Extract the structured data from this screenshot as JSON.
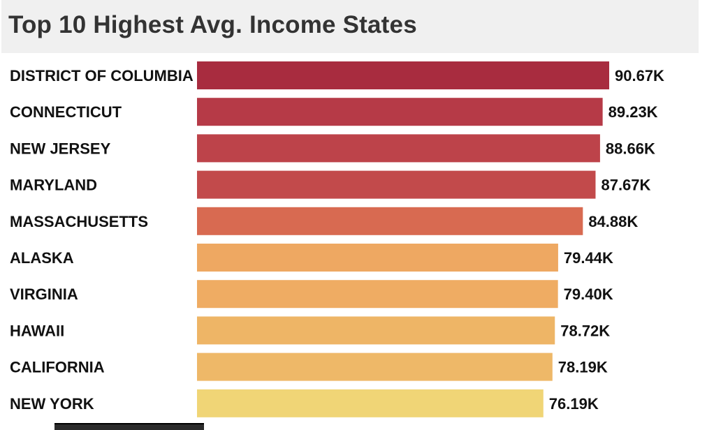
{
  "chart_data": {
    "type": "bar",
    "orientation": "horizontal",
    "title": "Top 10 Highest Avg. Income States",
    "categories": [
      "DISTRICT OF COLUMBIA",
      "CONNECTICUT",
      "NEW JERSEY",
      "MARYLAND",
      "MASSACHUSETTS",
      "ALASKA",
      "VIRGINIA",
      "HAWAII",
      "CALIFORNIA",
      "NEW YORK"
    ],
    "values": [
      90670,
      89230,
      88660,
      87670,
      84880,
      79440,
      79400,
      78720,
      78190,
      76190
    ],
    "value_labels": [
      "90.67K",
      "89.23K",
      "88.66K",
      "87.67K",
      "84.88K",
      "79.44K",
      "79.40K",
      "78.72K",
      "78.19K",
      "76.19K"
    ],
    "colors": [
      "#a82c3f",
      "#b63a47",
      "#bd434a",
      "#c24a4b",
      "#d86a51",
      "#eea862",
      "#efac63",
      "#eeb566",
      "#eeb868",
      "#f0d576"
    ],
    "xlim": [
      0,
      90670
    ],
    "xlabel": "",
    "ylabel": "",
    "grid": false,
    "legend": "none"
  }
}
